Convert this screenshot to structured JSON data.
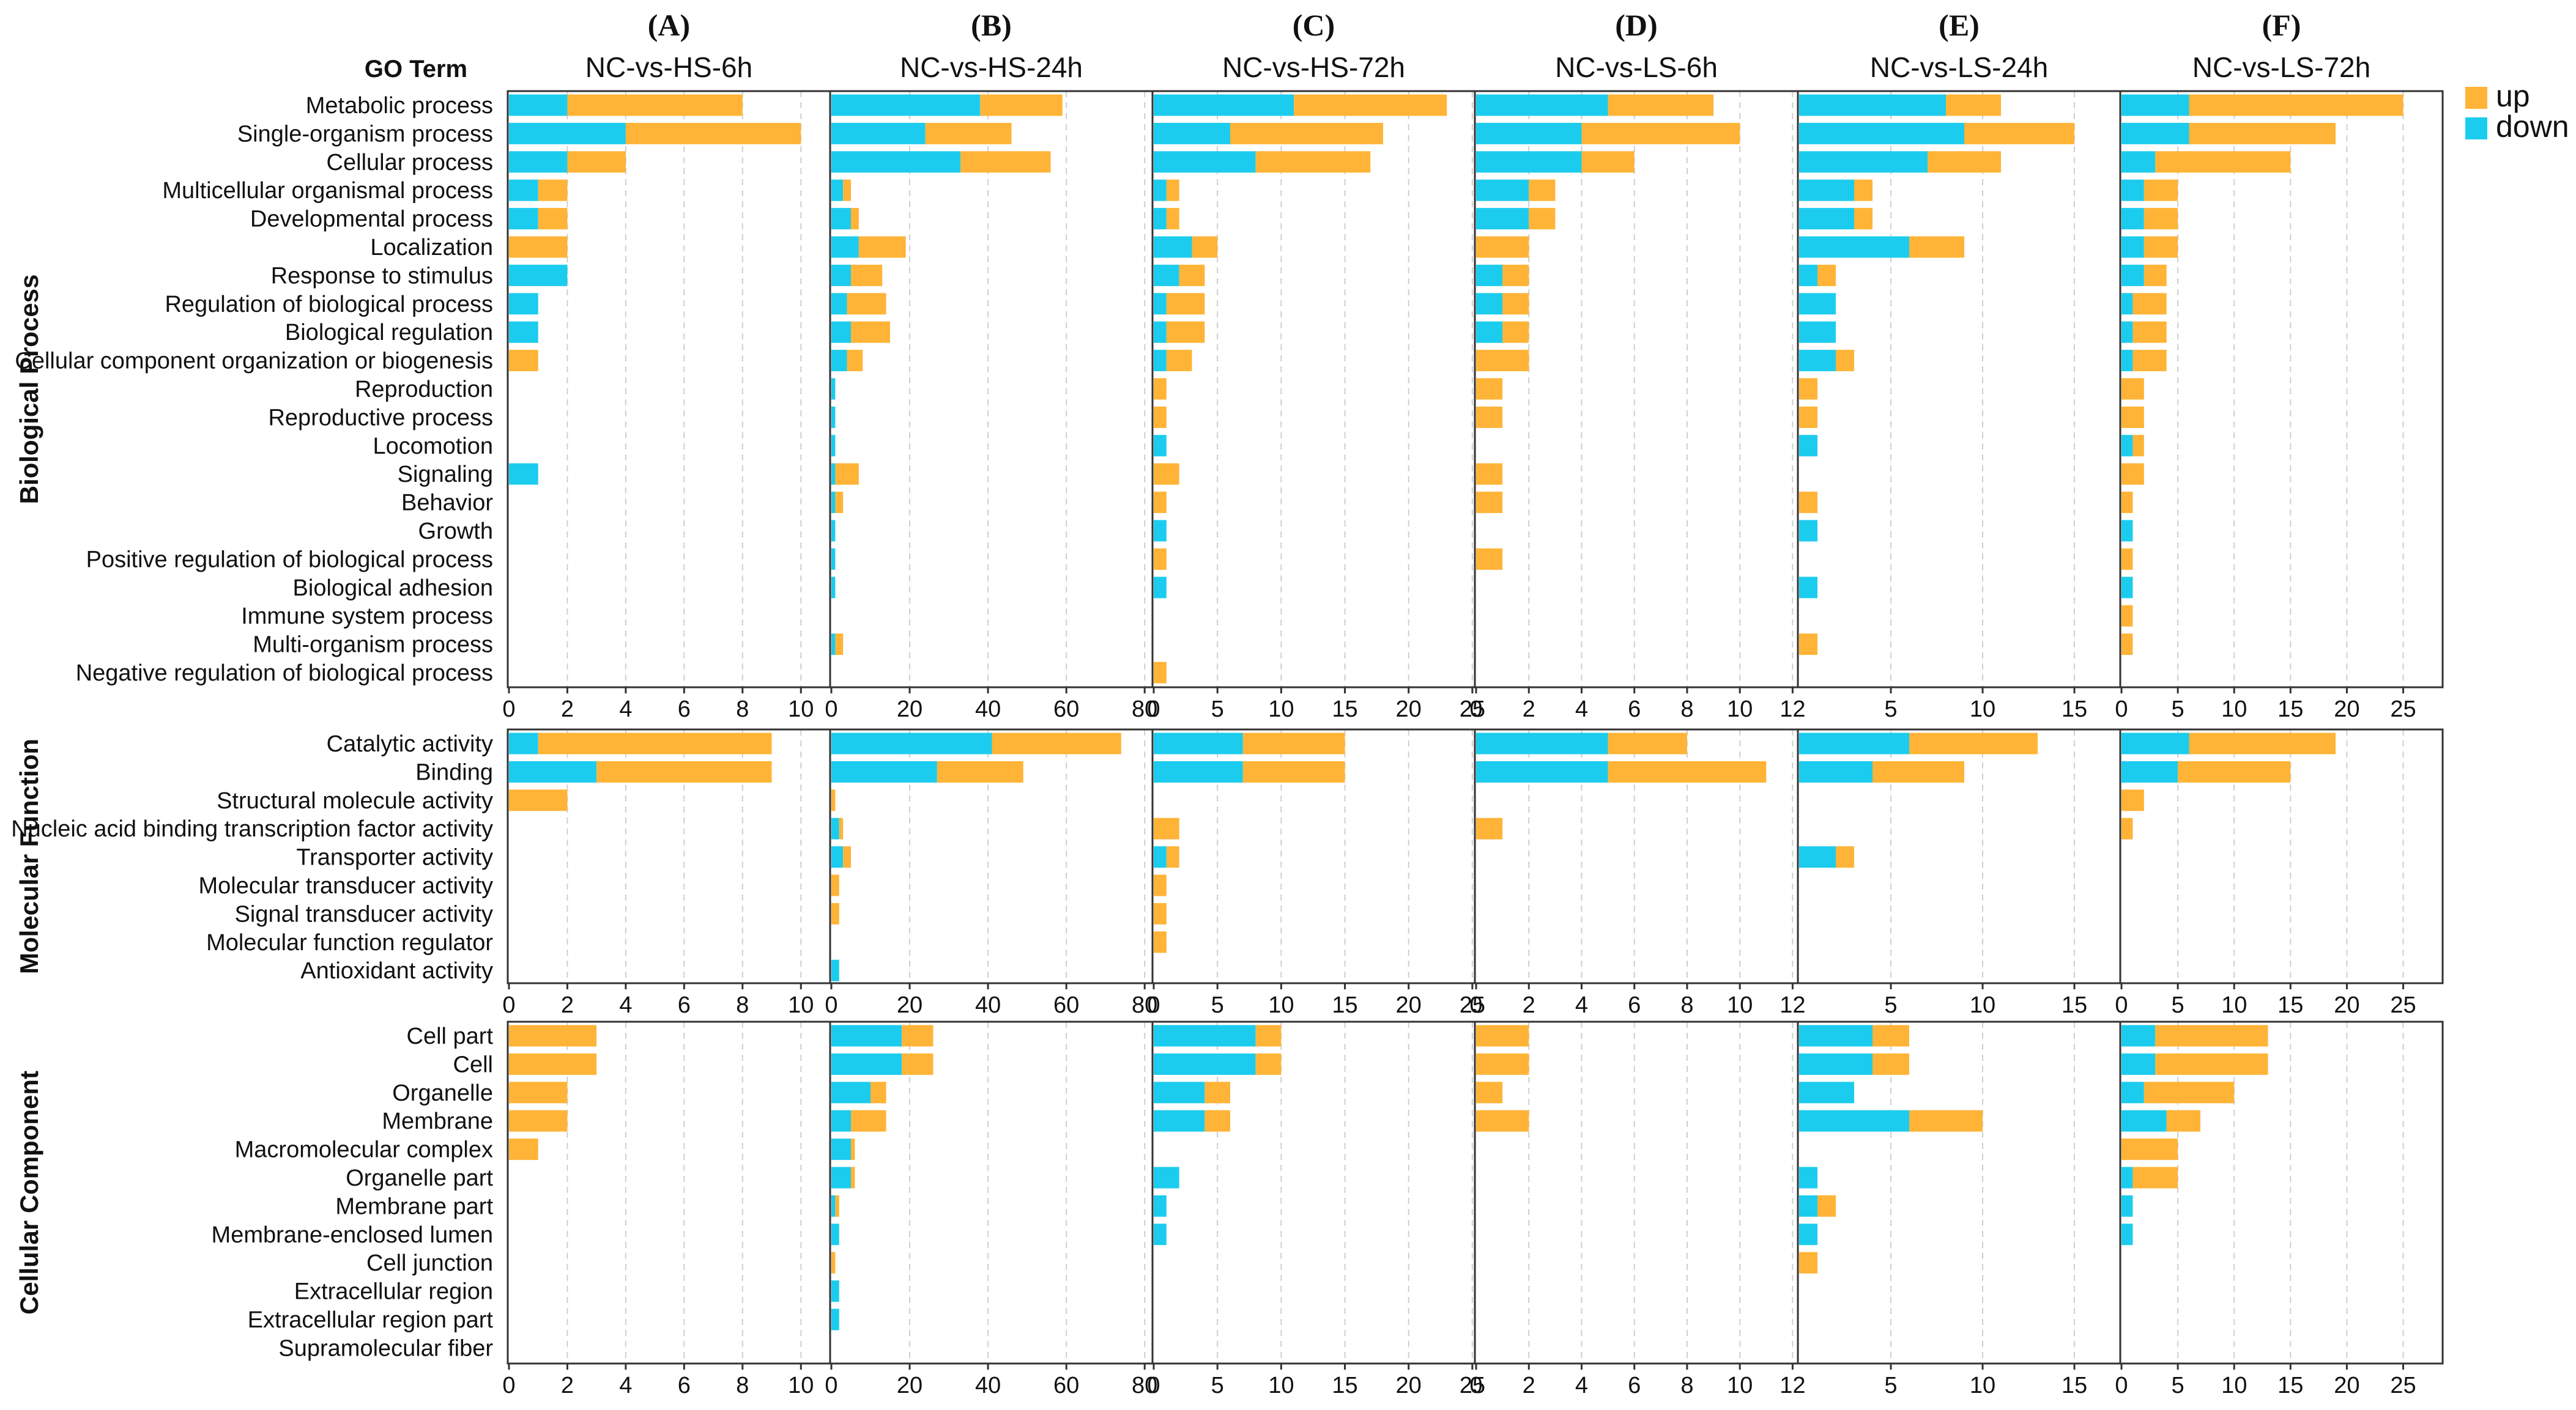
{
  "colors": {
    "up": "#FFB437",
    "down": "#1CCCEE",
    "grid": "#cfcfcf",
    "frame": "#333333"
  },
  "chart_data": {
    "type": "bar",
    "orientation": "horizontal",
    "stacked": true,
    "go_term_header": "GO Term",
    "legend": {
      "position": "top-right",
      "entries": [
        {
          "key": "up",
          "label": "up"
        },
        {
          "key": "down",
          "label": "down"
        }
      ]
    },
    "stack_order": [
      "down",
      "up"
    ],
    "grid": "vertical-dashed",
    "columns": [
      {
        "letter": "(A)",
        "title": "NC-vs-HS-6h",
        "xlim": [
          0,
          11
        ],
        "ticks": [
          0,
          2,
          4,
          6,
          8,
          10
        ]
      },
      {
        "letter": "(B)",
        "title": "NC-vs-HS-24h",
        "xlim": [
          0,
          82
        ],
        "ticks": [
          0,
          20,
          40,
          60,
          80
        ]
      },
      {
        "letter": "(C)",
        "title": "NC-vs-HS-72h",
        "xlim": [
          0,
          25.2
        ],
        "ticks": [
          0,
          5,
          10,
          15,
          20,
          25
        ]
      },
      {
        "letter": "(D)",
        "title": "NC-vs-LS-6h",
        "xlim": [
          0,
          12.2
        ],
        "ticks": [
          0,
          2,
          4,
          6,
          8,
          10,
          12
        ]
      },
      {
        "letter": "(E)",
        "title": "NC-vs-LS-24h",
        "xlim": [
          0,
          17.5
        ],
        "ticks": [
          5,
          10,
          15
        ]
      },
      {
        "letter": "(F)",
        "title": "NC-vs-LS-72h",
        "xlim": [
          0,
          28.5
        ],
        "ticks": [
          0,
          5,
          10,
          15,
          20,
          25
        ]
      }
    ],
    "sections": [
      {
        "name": "Biological Process",
        "terms": [
          "Metabolic process",
          "Single-organism process",
          "Cellular process",
          "Multicellular organismal process",
          "Developmental process",
          "Localization",
          "Response to stimulus",
          "Regulation of biological process",
          "Biological regulation",
          "Cellular component organization or biogenesis",
          "Reproduction",
          "Reproductive process",
          "Locomotion",
          "Signaling",
          "Behavior",
          "Growth",
          "Positive regulation of biological process",
          "Biological adhesion",
          "Immune system process",
          "Multi-organism process",
          "Negative regulation of biological process"
        ],
        "series": [
          {
            "name": "down",
            "values": [
              [
                2,
                4,
                2,
                1,
                1,
                0,
                2,
                1,
                1,
                0,
                0,
                0,
                0,
                1,
                0,
                0,
                0,
                0,
                0,
                0,
                0
              ],
              [
                38,
                24,
                33,
                3,
                5,
                7,
                5,
                4,
                5,
                4,
                1,
                1,
                1,
                1,
                1,
                1,
                1,
                1,
                0,
                1,
                0
              ],
              [
                11,
                6,
                8,
                1,
                1,
                3,
                2,
                1,
                1,
                1,
                0,
                0,
                1,
                0,
                0,
                1,
                0,
                1,
                0,
                0,
                0
              ],
              [
                5,
                4,
                4,
                2,
                2,
                0,
                1,
                1,
                1,
                0,
                0,
                0,
                0,
                0,
                0,
                0,
                0,
                0,
                0,
                0,
                0
              ],
              [
                8,
                9,
                7,
                3,
                3,
                6,
                1,
                2,
                2,
                2,
                0,
                0,
                1,
                0,
                0,
                1,
                0,
                1,
                0,
                0,
                0
              ],
              [
                6,
                6,
                3,
                2,
                2,
                2,
                2,
                1,
                1,
                1,
                0,
                0,
                1,
                0,
                0,
                1,
                0,
                1,
                0,
                0,
                0
              ]
            ]
          },
          {
            "name": "up",
            "values": [
              [
                6,
                6,
                2,
                1,
                1,
                2,
                0,
                0,
                0,
                1,
                0,
                0,
                0,
                0,
                0,
                0,
                0,
                0,
                0,
                0,
                0
              ],
              [
                21,
                22,
                23,
                2,
                2,
                12,
                8,
                10,
                10,
                4,
                0,
                0,
                0,
                6,
                2,
                0,
                0,
                0,
                0,
                2,
                0
              ],
              [
                12,
                12,
                9,
                1,
                1,
                2,
                2,
                3,
                3,
                2,
                1,
                1,
                0,
                2,
                1,
                0,
                1,
                0,
                0,
                0,
                1
              ],
              [
                4,
                6,
                2,
                1,
                1,
                2,
                1,
                1,
                1,
                2,
                1,
                1,
                0,
                1,
                1,
                0,
                1,
                0,
                0,
                0,
                0
              ],
              [
                3,
                6,
                4,
                1,
                1,
                3,
                1,
                0,
                0,
                1,
                1,
                1,
                0,
                0,
                1,
                0,
                0,
                0,
                0,
                1,
                0
              ],
              [
                19,
                13,
                12,
                3,
                3,
                3,
                2,
                3,
                3,
                3,
                2,
                2,
                1,
                2,
                1,
                0,
                1,
                0,
                1,
                1,
                0
              ]
            ]
          }
        ]
      },
      {
        "name": "Molecular Function",
        "terms": [
          "Catalytic activity",
          "Binding",
          "Structural molecule activity",
          "Nucleic acid binding transcription factor activity",
          "Transporter activity",
          "Molecular transducer activity",
          "Signal transducer activity",
          "Molecular function regulator",
          "Antioxidant activity"
        ],
        "series": [
          {
            "name": "down",
            "values": [
              [
                1,
                3,
                0,
                0,
                0,
                0,
                0,
                0,
                0
              ],
              [
                41,
                27,
                0,
                2,
                3,
                0,
                0,
                0,
                2
              ],
              [
                7,
                7,
                0,
                0,
                1,
                0,
                0,
                0,
                0
              ],
              [
                5,
                5,
                0,
                0,
                0,
                0,
                0,
                0,
                0
              ],
              [
                6,
                4,
                0,
                0,
                2,
                0,
                0,
                0,
                0
              ],
              [
                6,
                5,
                0,
                0,
                0,
                0,
                0,
                0,
                0
              ]
            ]
          },
          {
            "name": "up",
            "values": [
              [
                8,
                6,
                2,
                0,
                0,
                0,
                0,
                0,
                0
              ],
              [
                33,
                22,
                1,
                1,
                2,
                2,
                2,
                0,
                0
              ],
              [
                8,
                8,
                0,
                2,
                1,
                1,
                1,
                1,
                0
              ],
              [
                3,
                6,
                0,
                1,
                0,
                0,
                0,
                0,
                0
              ],
              [
                7,
                5,
                0,
                0,
                1,
                0,
                0,
                0,
                0
              ],
              [
                13,
                10,
                2,
                1,
                0,
                0,
                0,
                0,
                0
              ]
            ]
          }
        ]
      },
      {
        "name": "Cellular Component",
        "terms": [
          "Cell part",
          "Cell",
          "Organelle",
          "Membrane",
          "Macromolecular complex",
          "Organelle part",
          "Membrane part",
          "Membrane-enclosed lumen",
          "Cell junction",
          "Extracellular region",
          "Extracellular region part",
          "Supramolecular fiber"
        ],
        "series": [
          {
            "name": "down",
            "values": [
              [
                0,
                0,
                0,
                0,
                0,
                0,
                0,
                0,
                0,
                0,
                0,
                0
              ],
              [
                18,
                18,
                10,
                5,
                5,
                5,
                1,
                2,
                0,
                2,
                2,
                0
              ],
              [
                8,
                8,
                4,
                4,
                0,
                2,
                1,
                1,
                0,
                0,
                0,
                0
              ],
              [
                0,
                0,
                0,
                0,
                0,
                0,
                0,
                0,
                0,
                0,
                0,
                0
              ],
              [
                4,
                4,
                3,
                6,
                0,
                1,
                1,
                1,
                0,
                0,
                0,
                0
              ],
              [
                3,
                3,
                2,
                4,
                0,
                1,
                1,
                1,
                0,
                0,
                0,
                0
              ]
            ]
          },
          {
            "name": "up",
            "values": [
              [
                3,
                3,
                2,
                2,
                1,
                0,
                0,
                0,
                0,
                0,
                0,
                0
              ],
              [
                8,
                8,
                4,
                9,
                1,
                1,
                1,
                0,
                1,
                0,
                0,
                0
              ],
              [
                2,
                2,
                2,
                2,
                0,
                0,
                0,
                0,
                0,
                0,
                0,
                0
              ],
              [
                2,
                2,
                1,
                2,
                0,
                0,
                0,
                0,
                0,
                0,
                0,
                0
              ],
              [
                2,
                2,
                0,
                4,
                0,
                0,
                1,
                0,
                1,
                0,
                0,
                0
              ],
              [
                10,
                10,
                8,
                3,
                5,
                4,
                0,
                0,
                0,
                0,
                0,
                0
              ]
            ]
          }
        ]
      }
    ]
  }
}
